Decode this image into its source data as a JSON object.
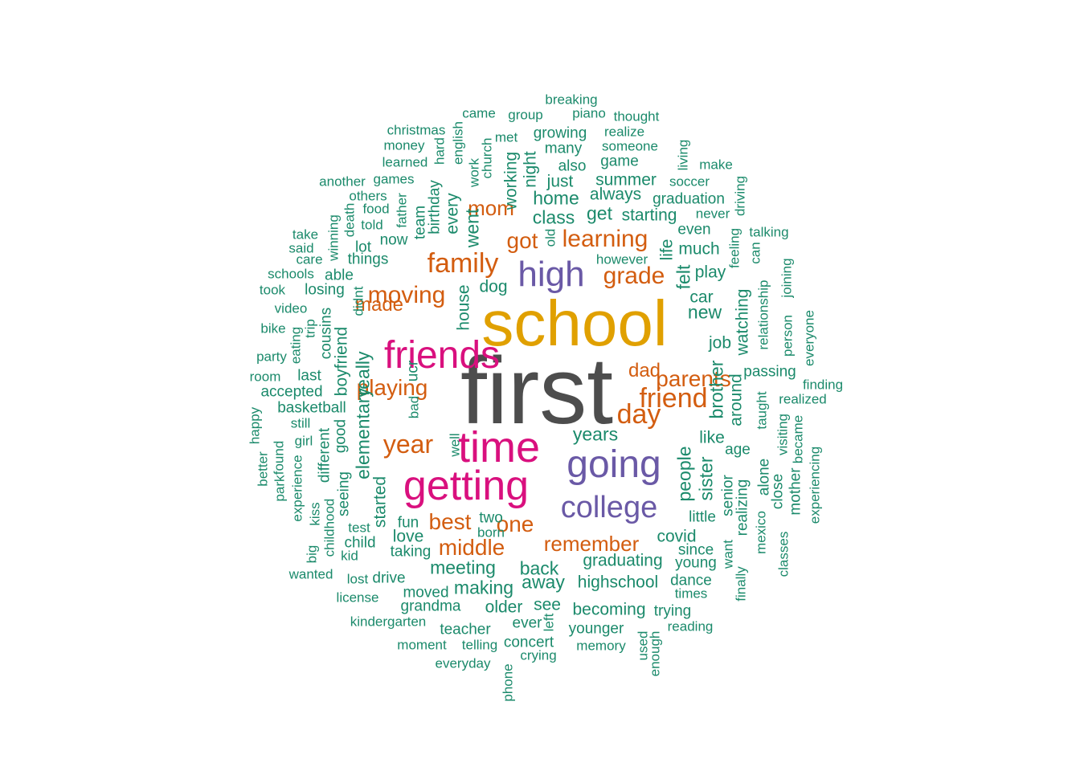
{
  "colors": {
    "dark": "#4d4d4d",
    "gold": "#e0a000",
    "purple": "#6a59a6",
    "magenta": "#d9107e",
    "orange": "#d35d10",
    "green": "#1b8a6b"
  },
  "words": [
    {
      "text": "first",
      "c": "dark"
    },
    {
      "text": "school",
      "c": "gold"
    },
    {
      "text": "friends",
      "c": "magenta"
    },
    {
      "text": "time",
      "c": "magenta"
    },
    {
      "text": "getting",
      "c": "magenta"
    },
    {
      "text": "going",
      "c": "purple"
    },
    {
      "text": "high",
      "c": "purple"
    },
    {
      "text": "college",
      "c": "purple"
    },
    {
      "text": "remember",
      "c": "orange"
    },
    {
      "text": "family",
      "c": "orange"
    },
    {
      "text": "learning",
      "c": "orange"
    },
    {
      "text": "grade",
      "c": "orange"
    },
    {
      "text": "got",
      "c": "orange"
    },
    {
      "text": "mom",
      "c": "orange"
    },
    {
      "text": "moving",
      "c": "orange"
    },
    {
      "text": "made",
      "c": "orange"
    },
    {
      "text": "playing",
      "c": "orange"
    },
    {
      "text": "year",
      "c": "orange"
    },
    {
      "text": "day",
      "c": "orange"
    },
    {
      "text": "dad",
      "c": "orange"
    },
    {
      "text": "friend",
      "c": "orange"
    },
    {
      "text": "parents",
      "c": "orange"
    },
    {
      "text": "best",
      "c": "orange"
    },
    {
      "text": "middle",
      "c": "orange"
    },
    {
      "text": "one",
      "c": "orange"
    },
    {
      "text": "breaking",
      "c": "green"
    },
    {
      "text": "piano",
      "c": "green"
    },
    {
      "text": "thought",
      "c": "green"
    },
    {
      "text": "came",
      "c": "green"
    },
    {
      "text": "group",
      "c": "green"
    },
    {
      "text": "christmas",
      "c": "green"
    },
    {
      "text": "met",
      "c": "green"
    },
    {
      "text": "growing",
      "c": "green"
    },
    {
      "text": "realize",
      "c": "green"
    },
    {
      "text": "money",
      "c": "green"
    },
    {
      "text": "many",
      "c": "green"
    },
    {
      "text": "someone",
      "c": "green"
    },
    {
      "text": "learned",
      "c": "green"
    },
    {
      "text": "also",
      "c": "green"
    },
    {
      "text": "game",
      "c": "green"
    },
    {
      "text": "make",
      "c": "green"
    },
    {
      "text": "another",
      "c": "green"
    },
    {
      "text": "games",
      "c": "green"
    },
    {
      "text": "just",
      "c": "green"
    },
    {
      "text": "summer",
      "c": "green"
    },
    {
      "text": "soccer",
      "c": "green"
    },
    {
      "text": "others",
      "c": "green"
    },
    {
      "text": "home",
      "c": "green"
    },
    {
      "text": "always",
      "c": "green"
    },
    {
      "text": "graduation",
      "c": "green"
    },
    {
      "text": "food",
      "c": "green"
    },
    {
      "text": "class",
      "c": "green"
    },
    {
      "text": "get",
      "c": "green"
    },
    {
      "text": "starting",
      "c": "green"
    },
    {
      "text": "never",
      "c": "green"
    },
    {
      "text": "told",
      "c": "green"
    },
    {
      "text": "even",
      "c": "green"
    },
    {
      "text": "talking",
      "c": "green"
    },
    {
      "text": "take",
      "c": "green"
    },
    {
      "text": "now",
      "c": "green"
    },
    {
      "text": "said",
      "c": "green"
    },
    {
      "text": "lot",
      "c": "green"
    },
    {
      "text": "much",
      "c": "green"
    },
    {
      "text": "care",
      "c": "green"
    },
    {
      "text": "things",
      "c": "green"
    },
    {
      "text": "however",
      "c": "green"
    },
    {
      "text": "schools",
      "c": "green"
    },
    {
      "text": "able",
      "c": "green"
    },
    {
      "text": "play",
      "c": "green"
    },
    {
      "text": "took",
      "c": "green"
    },
    {
      "text": "losing",
      "c": "green"
    },
    {
      "text": "dog",
      "c": "green"
    },
    {
      "text": "car",
      "c": "green"
    },
    {
      "text": "video",
      "c": "green"
    },
    {
      "text": "new",
      "c": "green"
    },
    {
      "text": "bike",
      "c": "green"
    },
    {
      "text": "job",
      "c": "green"
    },
    {
      "text": "party",
      "c": "green"
    },
    {
      "text": "passing",
      "c": "green"
    },
    {
      "text": "room",
      "c": "green"
    },
    {
      "text": "last",
      "c": "green"
    },
    {
      "text": "finding",
      "c": "green"
    },
    {
      "text": "accepted",
      "c": "green"
    },
    {
      "text": "realized",
      "c": "green"
    },
    {
      "text": "basketball",
      "c": "green"
    },
    {
      "text": "still",
      "c": "green"
    },
    {
      "text": "years",
      "c": "green"
    },
    {
      "text": "girl",
      "c": "green"
    },
    {
      "text": "like",
      "c": "green"
    },
    {
      "text": "age",
      "c": "green"
    },
    {
      "text": "two",
      "c": "green"
    },
    {
      "text": "fun",
      "c": "green"
    },
    {
      "text": "born",
      "c": "green"
    },
    {
      "text": "test",
      "c": "green"
    },
    {
      "text": "love",
      "c": "green"
    },
    {
      "text": "covid",
      "c": "green"
    },
    {
      "text": "little",
      "c": "green"
    },
    {
      "text": "child",
      "c": "green"
    },
    {
      "text": "since",
      "c": "green"
    },
    {
      "text": "kid",
      "c": "green"
    },
    {
      "text": "taking",
      "c": "green"
    },
    {
      "text": "young",
      "c": "green"
    },
    {
      "text": "graduating",
      "c": "green"
    },
    {
      "text": "meeting",
      "c": "green"
    },
    {
      "text": "back",
      "c": "green"
    },
    {
      "text": "wanted",
      "c": "green"
    },
    {
      "text": "lost",
      "c": "green"
    },
    {
      "text": "drive",
      "c": "green"
    },
    {
      "text": "away",
      "c": "green"
    },
    {
      "text": "highschool",
      "c": "green"
    },
    {
      "text": "dance",
      "c": "green"
    },
    {
      "text": "making",
      "c": "green"
    },
    {
      "text": "moved",
      "c": "green"
    },
    {
      "text": "times",
      "c": "green"
    },
    {
      "text": "license",
      "c": "green"
    },
    {
      "text": "grandma",
      "c": "green"
    },
    {
      "text": "older",
      "c": "green"
    },
    {
      "text": "see",
      "c": "green"
    },
    {
      "text": "becoming",
      "c": "green"
    },
    {
      "text": "trying",
      "c": "green"
    },
    {
      "text": "kindergarten",
      "c": "green"
    },
    {
      "text": "ever",
      "c": "green"
    },
    {
      "text": "reading",
      "c": "green"
    },
    {
      "text": "teacher",
      "c": "green"
    },
    {
      "text": "younger",
      "c": "green"
    },
    {
      "text": "moment",
      "c": "green"
    },
    {
      "text": "telling",
      "c": "green"
    },
    {
      "text": "concert",
      "c": "green"
    },
    {
      "text": "memory",
      "c": "green"
    },
    {
      "text": "crying",
      "c": "green"
    },
    {
      "text": "everyday",
      "c": "green"
    },
    {
      "text": "hard",
      "c": "green",
      "v": true
    },
    {
      "text": "english",
      "c": "green",
      "v": true
    },
    {
      "text": "church",
      "c": "green",
      "v": true
    },
    {
      "text": "work",
      "c": "green",
      "v": true
    },
    {
      "text": "living",
      "c": "green",
      "v": true
    },
    {
      "text": "night",
      "c": "green",
      "v": true
    },
    {
      "text": "working",
      "c": "green",
      "v": true
    },
    {
      "text": "birthday",
      "c": "green",
      "v": true
    },
    {
      "text": "driving",
      "c": "green",
      "v": true
    },
    {
      "text": "father",
      "c": "green",
      "v": true
    },
    {
      "text": "team",
      "c": "green",
      "v": true
    },
    {
      "text": "death",
      "c": "green",
      "v": true
    },
    {
      "text": "winning",
      "c": "green",
      "v": true
    },
    {
      "text": "every",
      "c": "green",
      "v": true
    },
    {
      "text": "went",
      "c": "green",
      "v": true
    },
    {
      "text": "old",
      "c": "green",
      "v": true
    },
    {
      "text": "feeling",
      "c": "green",
      "v": true
    },
    {
      "text": "can",
      "c": "green",
      "v": true
    },
    {
      "text": "life",
      "c": "green",
      "v": true
    },
    {
      "text": "joining",
      "c": "green",
      "v": true
    },
    {
      "text": "relationship",
      "c": "green",
      "v": true
    },
    {
      "text": "felt",
      "c": "green",
      "v": true
    },
    {
      "text": "didnt",
      "c": "green",
      "v": true
    },
    {
      "text": "house",
      "c": "green",
      "v": true
    },
    {
      "text": "watching",
      "c": "green",
      "v": true
    },
    {
      "text": "trip",
      "c": "green",
      "v": true
    },
    {
      "text": "eating",
      "c": "green",
      "v": true
    },
    {
      "text": "cousins",
      "c": "green",
      "v": true
    },
    {
      "text": "boyfriend",
      "c": "green",
      "v": true
    },
    {
      "text": "person",
      "c": "green",
      "v": true
    },
    {
      "text": "everyone",
      "c": "green",
      "v": true
    },
    {
      "text": "really",
      "c": "green",
      "v": true
    },
    {
      "text": "ucr",
      "c": "green",
      "v": true
    },
    {
      "text": "brother",
      "c": "green",
      "v": true
    },
    {
      "text": "around",
      "c": "green",
      "v": true
    },
    {
      "text": "taught",
      "c": "green",
      "v": true
    },
    {
      "text": "bad",
      "c": "green",
      "v": true
    },
    {
      "text": "happy",
      "c": "green",
      "v": true
    },
    {
      "text": "elementary",
      "c": "green",
      "v": true
    },
    {
      "text": "visiting",
      "c": "green",
      "v": true
    },
    {
      "text": "became",
      "c": "green",
      "v": true
    },
    {
      "text": "found",
      "c": "green",
      "v": true
    },
    {
      "text": "well",
      "c": "green",
      "v": true
    },
    {
      "text": "good",
      "c": "green",
      "v": true
    },
    {
      "text": "different",
      "c": "green",
      "v": true
    },
    {
      "text": "better",
      "c": "green",
      "v": true
    },
    {
      "text": "experience",
      "c": "green",
      "v": true
    },
    {
      "text": "park",
      "c": "green",
      "v": true
    },
    {
      "text": "seeing",
      "c": "green",
      "v": true
    },
    {
      "text": "started",
      "c": "green",
      "v": true
    },
    {
      "text": "people",
      "c": "green",
      "v": true
    },
    {
      "text": "sister",
      "c": "green",
      "v": true
    },
    {
      "text": "senior",
      "c": "green",
      "v": true
    },
    {
      "text": "alone",
      "c": "green",
      "v": true
    },
    {
      "text": "close",
      "c": "green",
      "v": true
    },
    {
      "text": "mother",
      "c": "green",
      "v": true
    },
    {
      "text": "experiencing",
      "c": "green",
      "v": true
    },
    {
      "text": "childhood",
      "c": "green",
      "v": true
    },
    {
      "text": "kiss",
      "c": "green",
      "v": true
    },
    {
      "text": "realizing",
      "c": "green",
      "v": true
    },
    {
      "text": "mexico",
      "c": "green",
      "v": true
    },
    {
      "text": "classes",
      "c": "green",
      "v": true
    },
    {
      "text": "big",
      "c": "green",
      "v": true
    },
    {
      "text": "want",
      "c": "green",
      "v": true
    },
    {
      "text": "finally",
      "c": "green",
      "v": true
    },
    {
      "text": "left",
      "c": "green",
      "v": true
    },
    {
      "text": "used",
      "c": "green",
      "v": true
    },
    {
      "text": "enough",
      "c": "green",
      "v": true
    },
    {
      "text": "phone",
      "c": "green",
      "v": true
    }
  ]
}
